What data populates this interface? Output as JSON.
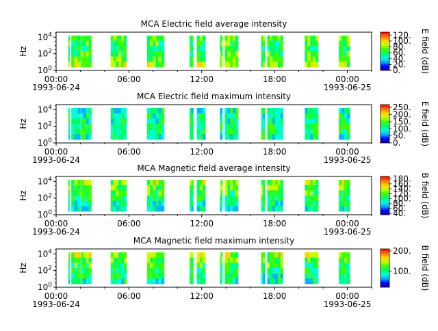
{
  "colormap": [
    "#1a00a0",
    "#0000ff",
    "#00b4ff",
    "#00ffd0",
    "#00ff60",
    "#40ff00",
    "#c8ff00",
    "#ffd000",
    "#ff7000",
    "#ff0000"
  ],
  "chart_data": [
    {
      "type": "heatmap",
      "title": "MCA  Electric field average intensity",
      "ylabel": "Hz",
      "y_scale": "log",
      "y_ticks": [
        "10^0",
        "10^2",
        "10^4"
      ],
      "x_ticks": [
        "00:00",
        "06:00",
        "12:00",
        "18:00",
        "00:00"
      ],
      "x_date_labels": [
        "1993-06-24",
        "1993-06-25"
      ],
      "xlim": [
        "1993-06-24 00:00",
        "1993-06-25 02:00"
      ],
      "colorbar": {
        "label": "E field (dB)",
        "ticks": [
          "0.",
          "20.",
          "40.",
          "60.",
          "80.",
          "100.",
          "120."
        ],
        "range": [
          0,
          130
        ]
      },
      "observation_hours": [
        [
          1.0,
          1.1
        ],
        [
          1.25,
          2.0
        ],
        [
          2.05,
          2.9
        ],
        [
          4.5,
          5.8
        ],
        [
          7.5,
          8.9
        ],
        [
          11.0,
          11.3
        ],
        [
          11.6,
          12.3
        ],
        [
          13.5,
          13.7
        ],
        [
          13.9,
          15.0
        ],
        [
          16.9,
          17.2
        ],
        [
          17.4,
          18.7
        ],
        [
          20.5,
          21.6
        ],
        [
          23.3,
          24.2
        ]
      ],
      "base_level": 0.55,
      "band_profile": [
        0.55,
        0.5,
        0.45,
        0.5,
        0.55,
        0.6
      ]
    },
    {
      "type": "heatmap",
      "title": "MCA  Electric field maximum intensity",
      "ylabel": "Hz",
      "y_scale": "log",
      "y_ticks": [
        "10^0",
        "10^2",
        "10^4"
      ],
      "x_ticks": [
        "00:00",
        "06:00",
        "12:00",
        "18:00",
        "00:00"
      ],
      "x_date_labels": [
        "1993-06-24",
        "1993-06-25"
      ],
      "xlim": [
        "1993-06-24 00:00",
        "1993-06-25 02:00"
      ],
      "colorbar": {
        "label": "E field (dB)",
        "ticks": [
          "0.",
          "50.",
          "100.",
          "150.",
          "200.",
          "250."
        ],
        "range": [
          0,
          270
        ]
      },
      "observation_hours": [
        [
          1.0,
          1.1
        ],
        [
          1.25,
          2.0
        ],
        [
          2.05,
          2.9
        ],
        [
          4.5,
          5.8
        ],
        [
          7.5,
          8.9
        ],
        [
          11.0,
          11.3
        ],
        [
          11.6,
          12.3
        ],
        [
          13.5,
          13.7
        ],
        [
          13.9,
          15.0
        ],
        [
          16.9,
          17.2
        ],
        [
          17.4,
          18.7
        ],
        [
          20.5,
          21.6
        ],
        [
          23.3,
          24.2
        ]
      ],
      "base_level": 0.42,
      "band_profile": [
        0.38,
        0.4,
        0.42,
        0.45,
        0.45,
        0.4
      ]
    },
    {
      "type": "heatmap",
      "title": "MCA  Magnetic field average intensity",
      "ylabel": "Hz",
      "y_scale": "log",
      "y_ticks": [
        "10^0",
        "10^2",
        "10^4"
      ],
      "x_ticks": [
        "00:00",
        "06:00",
        "12:00",
        "18:00",
        "00:00"
      ],
      "x_date_labels": [
        "1993-06-24",
        "1993-06-25"
      ],
      "xlim": [
        "1993-06-24 00:00",
        "1993-06-25 02:00"
      ],
      "colorbar": {
        "label": "B field (dB)",
        "ticks": [
          "40.",
          "60.",
          "80.",
          "100.",
          "120.",
          "140.",
          "160.",
          "180."
        ],
        "range": [
          35,
          190
        ]
      },
      "observation_hours": [
        [
          1.0,
          1.1
        ],
        [
          1.25,
          2.0
        ],
        [
          2.05,
          2.9
        ],
        [
          4.5,
          5.8
        ],
        [
          7.5,
          8.9
        ],
        [
          11.0,
          11.3
        ],
        [
          11.6,
          12.3
        ],
        [
          13.5,
          13.7
        ],
        [
          13.9,
          15.0
        ],
        [
          16.9,
          17.2
        ],
        [
          17.4,
          18.7
        ],
        [
          20.5,
          21.6
        ],
        [
          23.3,
          24.2
        ]
      ],
      "base_level": 0.5,
      "band_profile": [
        0.6,
        0.55,
        0.5,
        0.45,
        0.4,
        0.35
      ]
    },
    {
      "type": "heatmap",
      "title": "MCA  Magnetic field maximum intensity",
      "ylabel": "Hz",
      "y_scale": "log",
      "y_ticks": [
        "10^0",
        "10^2",
        "10^4"
      ],
      "x_ticks": [
        "00:00",
        "06:00",
        "12:00",
        "18:00",
        "00:00"
      ],
      "x_date_labels": [
        "1993-06-24",
        "1993-06-25"
      ],
      "xlim": [
        "1993-06-24 00:00",
        "1993-06-25 02:00"
      ],
      "colorbar": {
        "label": "B field (dB)",
        "ticks": [
          "100.",
          "200."
        ],
        "range": [
          20,
          210
        ]
      },
      "observation_hours": [
        [
          1.0,
          1.1
        ],
        [
          1.25,
          2.0
        ],
        [
          2.05,
          2.9
        ],
        [
          4.5,
          5.8
        ],
        [
          7.5,
          8.9
        ],
        [
          11.0,
          11.3
        ],
        [
          11.6,
          12.3
        ],
        [
          13.5,
          13.7
        ],
        [
          13.9,
          15.0
        ],
        [
          16.9,
          17.2
        ],
        [
          17.4,
          18.7
        ],
        [
          20.5,
          21.6
        ],
        [
          23.3,
          24.2
        ]
      ],
      "base_level": 0.5,
      "band_profile": [
        0.62,
        0.57,
        0.5,
        0.45,
        0.42,
        0.38
      ]
    }
  ]
}
